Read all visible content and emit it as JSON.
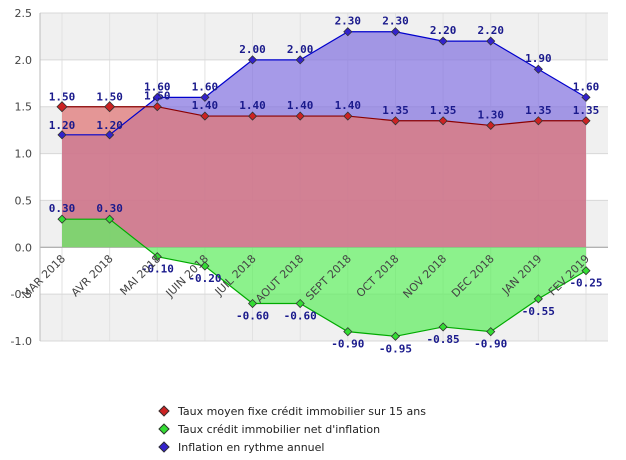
{
  "chart_data": {
    "type": "area",
    "title": "",
    "xlabel": "",
    "ylabel": "",
    "ylim": [
      -1.0,
      2.5
    ],
    "yticks": [
      "-1.0",
      "-0.5",
      "0.0",
      "0.5",
      "1.0",
      "1.5",
      "2.0",
      "2.5"
    ],
    "grid": true,
    "legend_position": "bottom",
    "categories": [
      "MAR 2018",
      "AVR 2018",
      "MAI 2018",
      "JUIN 2018",
      "JUIL 2018",
      "AOUT 2018",
      "SEPT 2018",
      "OCT 2018",
      "NOV 2018",
      "DEC 2018",
      "JAN 2019",
      "FEV 2019"
    ],
    "series": [
      {
        "name": "Inflation en rythme annuel",
        "color": "#0000cc",
        "fill": "#8878e0",
        "labelColor": "#1a1a8c",
        "values": [
          1.2,
          1.2,
          1.6,
          1.6,
          2.0,
          2.0,
          2.3,
          2.3,
          2.2,
          2.2,
          1.9,
          1.6
        ],
        "labels": [
          "1.20",
          "1.20",
          "1.60",
          "1.60",
          "2.00",
          "2.00",
          "2.30",
          "2.30",
          "2.20",
          "2.20",
          "1.90",
          "1.60"
        ]
      },
      {
        "name": "Taux moyen fixe crédit immobilier sur 15 ans",
        "color": "#8b0000",
        "fill": "#e07878",
        "labelColor": "#1a1a8c",
        "values": [
          1.5,
          1.5,
          1.5,
          1.4,
          1.4,
          1.4,
          1.4,
          1.35,
          1.35,
          1.3,
          1.35,
          1.35
        ],
        "labels": [
          "1.50",
          "1.50",
          "1.50",
          "1.40",
          "1.40",
          "1.40",
          "1.40",
          "1.35",
          "1.35",
          "1.30",
          "1.35",
          "1.35"
        ]
      },
      {
        "name": "Taux crédit immobilier net d'inflation",
        "color": "#00aa00",
        "fill": "#66ee66",
        "labelColor": "#1a1a8c",
        "values": [
          0.3,
          0.3,
          -0.1,
          -0.2,
          -0.6,
          -0.6,
          -0.9,
          -0.95,
          -0.85,
          -0.9,
          -0.55,
          -0.25
        ],
        "labels": [
          "0.30",
          "0.30",
          "-0.10",
          "-0.20",
          "-0.60",
          "-0.60",
          "-0.90",
          "-0.95",
          "-0.85",
          "-0.90",
          "-0.55",
          "-0.25"
        ]
      }
    ]
  },
  "legend": [
    {
      "label": "Taux moyen fixe crédit immobilier sur 15 ans",
      "color": "#cc2222"
    },
    {
      "label": "Taux crédit immobilier net d'inflation",
      "color": "#33dd33"
    },
    {
      "label": "Inflation en rythme annuel",
      "color": "#3322cc"
    }
  ]
}
